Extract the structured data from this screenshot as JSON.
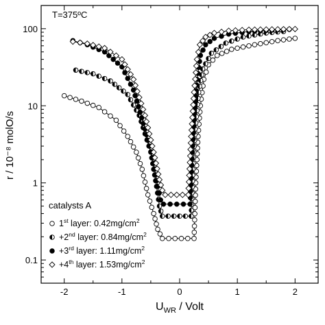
{
  "chart_data": {
    "type": "scatter",
    "title": "T=375ºC",
    "xlabel": {
      "main": "U",
      "sub": "WR",
      "rest": " / Volt"
    },
    "ylabel": "r / 10⁻⁸ molO/s",
    "xlim": [
      -2.4,
      2.4
    ],
    "ylim": [
      0.05,
      200
    ],
    "yscale": "log",
    "xticks": [
      -2,
      -1,
      0,
      1,
      2
    ],
    "xtick_labels": [
      "-2",
      "-1",
      "0",
      "1",
      "2"
    ],
    "yticks": [
      0.1,
      1,
      10,
      100
    ],
    "ytick_labels": [
      "0.1",
      "1",
      "10",
      "100"
    ],
    "grid": false,
    "legend": {
      "position": "bottom-left",
      "title": "catalysts A",
      "entries": [
        {
          "prefix": "1",
          "sup": "st",
          "text": " layer: 0.42mg/cm",
          "unit_sup": "2"
        },
        {
          "prefix": "+2",
          "sup": "nd",
          "text": " layer: 0.84mg/cm",
          "unit_sup": "2"
        },
        {
          "prefix": "+3",
          "sup": "rd",
          "text": " layer: 1.11mg/cm",
          "unit_sup": "2"
        },
        {
          "prefix": "+4",
          "sup": "th",
          "text": " layer: 1.53mg/cm",
          "unit_sup": "2"
        }
      ]
    },
    "series": [
      {
        "marker": "open-circle",
        "x": [
          -2.0,
          -1.7,
          -1.4,
          -1.1,
          -0.9,
          -0.75,
          -0.65,
          -0.55,
          -0.45,
          -0.38,
          -0.3,
          0.25,
          0.28,
          0.32,
          0.36,
          0.42,
          0.5,
          0.65,
          0.9,
          1.3,
          1.7,
          2.0
        ],
        "y": [
          13.5,
          11.5,
          9.5,
          6.5,
          4.0,
          2.5,
          1.5,
          0.7,
          0.4,
          0.25,
          0.19,
          0.19,
          1.0,
          4.0,
          10.0,
          22.0,
          34.0,
          45.0,
          54.0,
          62.0,
          70.0,
          75.0
        ]
      },
      {
        "marker": "half-circle",
        "x": [
          -1.8,
          -1.5,
          -1.2,
          -0.9,
          -0.7,
          -0.5,
          -0.4,
          -0.35,
          -0.3,
          0.2,
          0.23,
          0.27,
          0.33,
          0.4,
          0.55,
          0.8,
          1.1,
          1.5,
          1.8
        ],
        "y": [
          29.0,
          26.0,
          21.0,
          14.0,
          7.5,
          2.5,
          0.9,
          0.5,
          0.37,
          0.37,
          1.5,
          5.0,
          15.0,
          30.0,
          48.0,
          65.0,
          78.0,
          88.0,
          92.0
        ]
      },
      {
        "marker": "filled-circle",
        "x": [
          -1.85,
          -1.6,
          -1.3,
          -1.0,
          -0.8,
          -0.6,
          -0.45,
          -0.38,
          -0.33,
          -0.28,
          0.18,
          0.22,
          0.26,
          0.3,
          0.36,
          0.45,
          0.6,
          0.85,
          1.2,
          1.6,
          1.9
        ],
        "y": [
          70.0,
          62.0,
          50.0,
          32.0,
          16.0,
          5.0,
          1.8,
          0.9,
          0.6,
          0.53,
          0.53,
          2.5,
          8.0,
          22.0,
          45.0,
          62.0,
          75.0,
          85.0,
          92.0,
          96.0,
          98.0
        ]
      },
      {
        "marker": "open-diamond",
        "x": [
          -1.85,
          -1.6,
          -1.3,
          -1.0,
          -0.8,
          -0.6,
          -0.45,
          -0.35,
          -0.3,
          -0.25,
          0.15,
          0.2,
          0.25,
          0.3,
          0.35,
          0.45,
          0.6,
          0.85,
          1.2,
          1.6,
          2.0
        ],
        "y": [
          68.0,
          64.0,
          56.0,
          40.0,
          22.0,
          7.5,
          2.5,
          1.1,
          0.8,
          0.7,
          0.7,
          4.0,
          15.0,
          40.0,
          62.0,
          78.0,
          88.0,
          94.0,
          97.0,
          98.0,
          99.0
        ]
      }
    ]
  }
}
